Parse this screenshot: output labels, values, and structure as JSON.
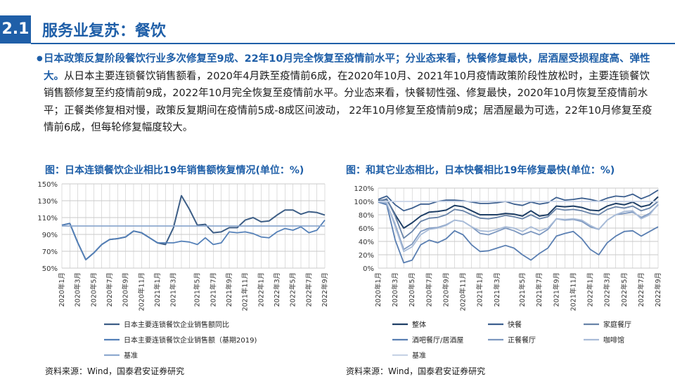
{
  "header": {
    "section_number": "2.1",
    "title": "服务业复苏：餐饮"
  },
  "summary": {
    "bold": "日本政策反复阶段餐饮行业多次修复至9成、22年10月完全恢复至疫情前水平；分业态来看，快餐修复最快，居酒屋受损程度高、弹性大。",
    "text": "从日本主要连锁餐饮销售额看，2020年4月跌至疫情前6成，在2020年10月、2021年10月疫情政策阶段性放松时，主要连锁餐饮销售额修复至约疫情前9成，2022年10月完全恢复至疫情前水平。分业态来看，快餐韧性强、修复最快，2020年10月恢复至疫情前水平；正餐类修复相对慢，政策反复期间在疫情前5成-8成区间波动， 22年10月修复至疫情前9成；居酒屋最为可选，22年10月修复至疫情前6成，但每轮修复幅度较大。"
  },
  "colors": {
    "accent": "#1f5fa8",
    "grid": "#c9c9c9"
  },
  "chart_data": [
    {
      "type": "line",
      "title": "图：日本连锁餐饮企业相比19年销售额恢复情况(单位：%)",
      "x_tick_labels": [
        "2020年1月",
        "2020年3月",
        "2020年5月",
        "2020年7月",
        "2020年9月",
        "2020年11月",
        "2021年1月",
        "2021年3月",
        "2021年5月",
        "2021年7月",
        "2021年9月",
        "2021年11月",
        "2022年1月",
        "2022年3月",
        "2022年5月",
        "2022年7月",
        "2022年9月"
      ],
      "ylim": [
        50,
        150
      ],
      "y_ticks": [
        50,
        70,
        90,
        110,
        130,
        150
      ],
      "y_tick_labels": [
        "50%",
        "70%",
        "90%",
        "110%",
        "130%",
        "150%"
      ],
      "grid": true,
      "legend_position": "bottom",
      "series": [
        {
          "name": "日本主要连锁餐饮企业销售额同比",
          "color": "#3d5e86",
          "values": [
            101,
            103,
            80,
            60,
            68,
            78,
            84,
            85,
            87,
            94,
            92,
            86,
            80,
            78,
            98,
            136,
            120,
            101,
            102,
            92,
            93,
            98,
            98,
            107,
            110,
            105,
            106,
            113,
            119,
            119,
            114,
            117,
            116,
            113
          ]
        },
        {
          "name": "日本主要连锁餐饮企业销售额（基期2019)",
          "color": "#5480b8",
          "values": [
            101,
            103,
            80,
            60,
            68,
            78,
            84,
            85,
            87,
            94,
            92,
            86,
            80,
            80,
            80,
            82,
            81,
            78,
            86,
            78,
            80,
            93,
            92,
            93,
            91,
            87,
            86,
            93,
            97,
            95,
            99,
            92,
            95,
            107
          ]
        },
        {
          "name": "基准",
          "color": "#8ea9cf",
          "values": [
            100,
            100,
            100,
            100,
            100,
            100,
            100,
            100,
            100,
            100,
            100,
            100,
            100,
            100,
            100,
            100,
            100,
            100,
            100,
            100,
            100,
            100,
            100,
            100,
            100,
            100,
            100,
            100,
            100,
            100,
            100,
            100,
            100,
            100
          ]
        }
      ]
    },
    {
      "type": "line",
      "title": "图：和其它业态相比，日本快餐相比19年修复最快(单位：%)",
      "x_tick_labels": [
        "2020年1月",
        "2020年3月",
        "2020年5月",
        "2020年7月",
        "2020年9月",
        "2020年11月",
        "2021年1月",
        "2021年3月",
        "2021年5月",
        "2021年7月",
        "2021年9月",
        "2021年11月",
        "2022年1月",
        "2022年3月",
        "2022年5月",
        "2022年7月",
        "2022年9月"
      ],
      "ylim": [
        0,
        120
      ],
      "y_ticks": [
        0,
        20,
        40,
        60,
        80,
        100,
        120
      ],
      "y_tick_labels": [
        "0%",
        "20%",
        "40%",
        "60%",
        "80%",
        "100%",
        "120%"
      ],
      "grid": true,
      "legend_position": "bottom",
      "series": [
        {
          "name": "整体",
          "color": "#1f3f66",
          "values": [
            101,
            103,
            80,
            60,
            68,
            78,
            84,
            85,
            87,
            94,
            92,
            86,
            80,
            80,
            80,
            82,
            81,
            78,
            86,
            78,
            80,
            93,
            92,
            93,
            91,
            87,
            86,
            93,
            97,
            95,
            99,
            92,
            95,
            107
          ]
        },
        {
          "name": "快餐",
          "color": "#3c5f8f",
          "values": [
            103,
            108,
            95,
            86,
            90,
            96,
            96,
            100,
            102,
            102,
            101,
            99,
            97,
            97,
            98,
            100,
            96,
            94,
            99,
            96,
            98,
            106,
            102,
            103,
            105,
            103,
            100,
            105,
            108,
            107,
            111,
            104,
            109,
            117
          ]
        },
        {
          "name": "家庭餐厅",
          "color": "#6883a8",
          "values": [
            100,
            104,
            78,
            45,
            55,
            70,
            75,
            76,
            80,
            88,
            86,
            80,
            75,
            74,
            76,
            79,
            77,
            74,
            80,
            74,
            77,
            89,
            87,
            88,
            86,
            82,
            80,
            88,
            92,
            90,
            93,
            86,
            90,
            100
          ]
        },
        {
          "name": "酒吧餐厅/居酒屋",
          "color": "#5a7fb2",
          "values": [
            99,
            95,
            42,
            8,
            12,
            35,
            42,
            38,
            44,
            56,
            50,
            35,
            25,
            26,
            30,
            34,
            30,
            20,
            12,
            22,
            30,
            48,
            52,
            55,
            44,
            28,
            20,
            38,
            48,
            55,
            56,
            48,
            55,
            62
          ]
        },
        {
          "name": "正餐餐厅",
          "color": "#7d98c0",
          "values": [
            100,
            97,
            65,
            28,
            36,
            55,
            60,
            61,
            65,
            72,
            70,
            62,
            52,
            50,
            55,
            60,
            56,
            50,
            55,
            50,
            58,
            74,
            72,
            73,
            70,
            62,
            58,
            72,
            80,
            82,
            84,
            76,
            82,
            95
          ]
        },
        {
          "name": "咖啡馆",
          "color": "#a9bcd8",
          "values": [
            100,
            98,
            62,
            25,
            32,
            50,
            58,
            60,
            64,
            72,
            70,
            62,
            56,
            55,
            58,
            62,
            60,
            55,
            62,
            56,
            60,
            74,
            73,
            74,
            72,
            64,
            58,
            72,
            80,
            85,
            86,
            74,
            80,
            96
          ]
        },
        {
          "name": "基准",
          "color": "#c7d3e6",
          "values": [
            100,
            100,
            100,
            100,
            100,
            100,
            100,
            100,
            100,
            100,
            100,
            100,
            100,
            100,
            100,
            100,
            100,
            100,
            100,
            100,
            100,
            100,
            100,
            100,
            100,
            100,
            100,
            100,
            100,
            100,
            100,
            100,
            100,
            100
          ]
        }
      ]
    }
  ],
  "sources": {
    "left": "资料来源：Wind，国泰君安证券研究",
    "right": "资料来源：Wind，国泰君安证券研究"
  }
}
